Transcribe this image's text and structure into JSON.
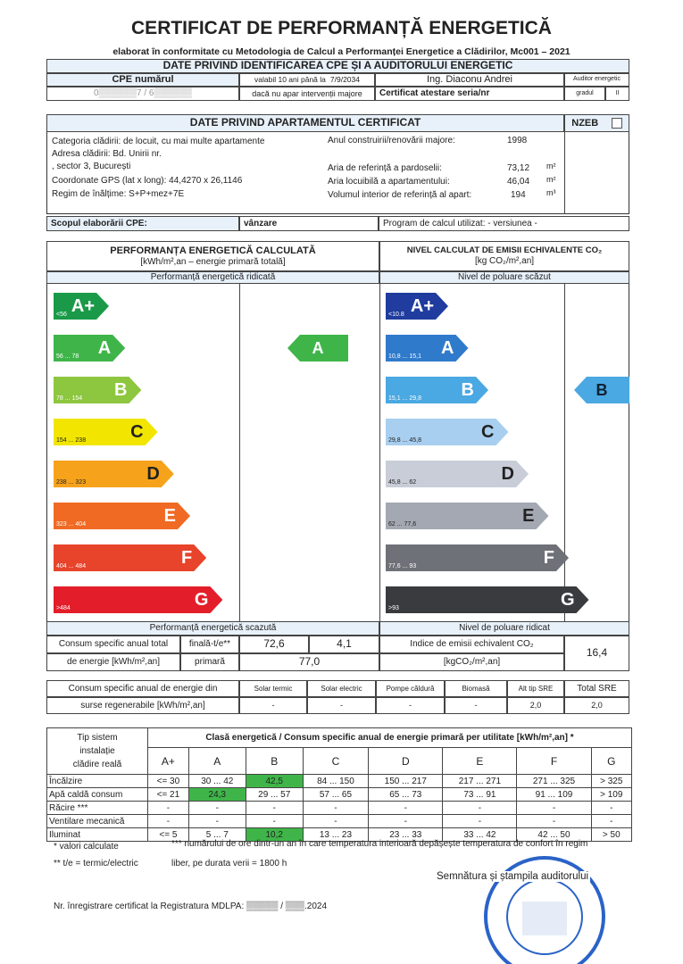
{
  "title": "CERTIFICAT DE PERFORMANȚĂ ENERGETICĂ",
  "subtitle": "elaborat în conformitate cu Metodologia de Calcul a Performanței Energetice a Clădirilor, Mc001 – 2021",
  "id": {
    "header": "DATE PRIVIND IDENTIFICAREA CPE ȘI A AUDITORULUI ENERGETIC",
    "cpe_label": "CPE numărul",
    "cpe_value": "0▒▒▒▒▒▒7 / 6▒▒▒▒▒▒",
    "valid_label": "valabil 10 ani până la",
    "valid_date": "7/9/2034",
    "valid_note": "dacă nu apar intervenții majore",
    "auditor": "Ing. Diaconu Andrei",
    "cert_label": "Certificat atestare seria/nr",
    "role": "Auditor energetic",
    "grade_label": "gradul",
    "grade": "II"
  },
  "apt": {
    "header": "DATE PRIVIND APARTAMENTUL CERTIFICAT",
    "nzeb": "NZEB",
    "category": "Categoria clădirii: de locuit, cu mai multe apartamente",
    "address1": "Adresa clădirii: Bd. Unirii nr.",
    "address2": ", sector 3, București",
    "gps": "Coordonate GPS (lat x long):   44,4270 x 26,1146",
    "height": "Regim de înălțime:  S+P+mez+7E",
    "year_label": "Anul construirii/renovării majore:",
    "year": "1998",
    "ref_area_label": "Aria de referință a pardoselii:",
    "ref_area": "73,12",
    "liv_area_label": "Aria locuibilă a apartamentului:",
    "liv_area": "46,04",
    "volume_label": "Volumul interior de referință al apart:",
    "volume": "194",
    "m2": "m²",
    "m3": "m³"
  },
  "scope": {
    "label": "Scopul elaborării CPE:",
    "value": "vânzare",
    "program": "Program de calcul utilizat:  - versiunea -"
  },
  "energy": {
    "title": "PERFORMANȚA ENERGETICĂ CALCULATĂ",
    "unit": "[kWh/m²,an – energie primară totală]",
    "high": "Performanță energetică ridicată",
    "low": "Performanță energetică scazută",
    "result": "A",
    "result_color": "#3fb549",
    "classes": [
      {
        "c": "A+",
        "r": "<56",
        "col": "#1a9a48"
      },
      {
        "c": "A",
        "r": "56 ... 78",
        "col": "#3fb549"
      },
      {
        "c": "B",
        "r": "78 ... 154",
        "col": "#8dc63f"
      },
      {
        "c": "C",
        "r": "154 ... 238",
        "col": "#f2e600"
      },
      {
        "c": "D",
        "r": "238 ... 323",
        "col": "#f6a31b"
      },
      {
        "c": "E",
        "r": "323 ... 404",
        "col": "#f06a23"
      },
      {
        "c": "F",
        "r": "404 ... 484",
        "col": "#e8432b"
      },
      {
        "c": "G",
        "r": ">484",
        "col": "#e31e2a"
      }
    ]
  },
  "co2": {
    "title": "NIVEL CALCULAT DE EMISII ECHIVALENTE CO₂",
    "unit": "[kg CO₂/m²,an]",
    "high": "Nivel de poluare scăzut",
    "low": "Nivel de poluare ridicat",
    "result": "B",
    "result_color": "#4aa8e2",
    "classes": [
      {
        "c": "A+",
        "r": "<10.8",
        "col": "#1f3c9e"
      },
      {
        "c": "A",
        "r": "10,8 ... 15,1",
        "col": "#2f7acb"
      },
      {
        "c": "B",
        "r": "15,1 ... 29,8",
        "col": "#4aa8e2"
      },
      {
        "c": "C",
        "r": "29,8 ... 45,8",
        "col": "#a8cff0"
      },
      {
        "c": "D",
        "r": "45,8 ... 62",
        "col": "#c8cdd8"
      },
      {
        "c": "E",
        "r": "62 ... 77,6",
        "col": "#a3a8b2"
      },
      {
        "c": "F",
        "r": "77,6 ... 93",
        "col": "#6e7177"
      },
      {
        "c": "G",
        "r": ">93",
        "col": "#3a3b3e"
      }
    ]
  },
  "consumption": {
    "label1": "Consum specific anual total",
    "label2": "de energie [kWh/m²,an]",
    "final_label": "finală-t/e**",
    "final_t": "72,6",
    "final_e": "4,1",
    "primary_label": "primară",
    "primary": "77,0",
    "co2_label": "Indice de emisii echivalent CO₂",
    "co2_unit": "[kgCO₂/m²,an]",
    "co2": "16,4"
  },
  "sre": {
    "label1": "Consum specific anual de energie din",
    "label2": "surse regenerabile [kWh/m²,an]",
    "cols": [
      "Solar termic",
      "Solar electric",
      "Pompe căldură",
      "Biomasă",
      "Alt tip SRE",
      "Total SRE"
    ],
    "vals": [
      "-",
      "-",
      "-",
      "-",
      "2,0",
      "2,0"
    ]
  },
  "util": {
    "h1": "Tip sistem",
    "h2": "instalație",
    "h3": "clădire reală",
    "title": "Clasă energetică / Consum specific anual de energie primară per utilitate [kWh/m²,an] *",
    "classes": [
      "A+",
      "A",
      "B",
      "C",
      "D",
      "E",
      "F",
      "G"
    ],
    "rows": [
      {
        "name": "Încălzire",
        "vals": [
          "<= 30",
          "30 ... 42",
          "42,5",
          "84 ... 150",
          "150 ... 217",
          "217 ... 271",
          "271 ... 325",
          "> 325"
        ],
        "hl": 2
      },
      {
        "name": "Apă caldă consum",
        "vals": [
          "<= 21",
          "24,3",
          "29 ... 57",
          "57 ... 65",
          "65 ... 73",
          "73 ... 91",
          "91 ... 109",
          "> 109"
        ],
        "hl": 1
      },
      {
        "name": "Răcire ***",
        "vals": [
          "-",
          "-",
          "-",
          "-",
          "-",
          "-",
          "-",
          "-"
        ],
        "hl": -1
      },
      {
        "name": "Ventilare mecanică",
        "vals": [
          "-",
          "-",
          "-",
          "-",
          "-",
          "-",
          "-",
          "-"
        ],
        "hl": -1
      },
      {
        "name": "Iluminat",
        "vals": [
          "<= 5",
          "5 ... 7",
          "10,2",
          "13 ... 23",
          "23 ... 33",
          "33 ... 42",
          "42 ... 50",
          "> 50"
        ],
        "hl": 2
      }
    ]
  },
  "notes": {
    "n1": "* valori calculate",
    "n2": "** t/e = termic/electric",
    "n3": "*** numărului de ore dintr-un an în care temperatura interioară depășește temperatura de confort în regim",
    "n4": "liber, pe durata verii =    1800  h",
    "signature": "Semnătura și ștampila auditorului",
    "registry": "Nr. înregistrare certificat la Registratura MDLPA:  ▒▒▒▒▒ / ▒▒▒.2024"
  },
  "stamp": {
    "text": "DIACONU ANDREI · ROMÂNIA · M.D.R.A.P. · AUDITOR ENERGETIC PENTRU CLĂDIRI"
  }
}
